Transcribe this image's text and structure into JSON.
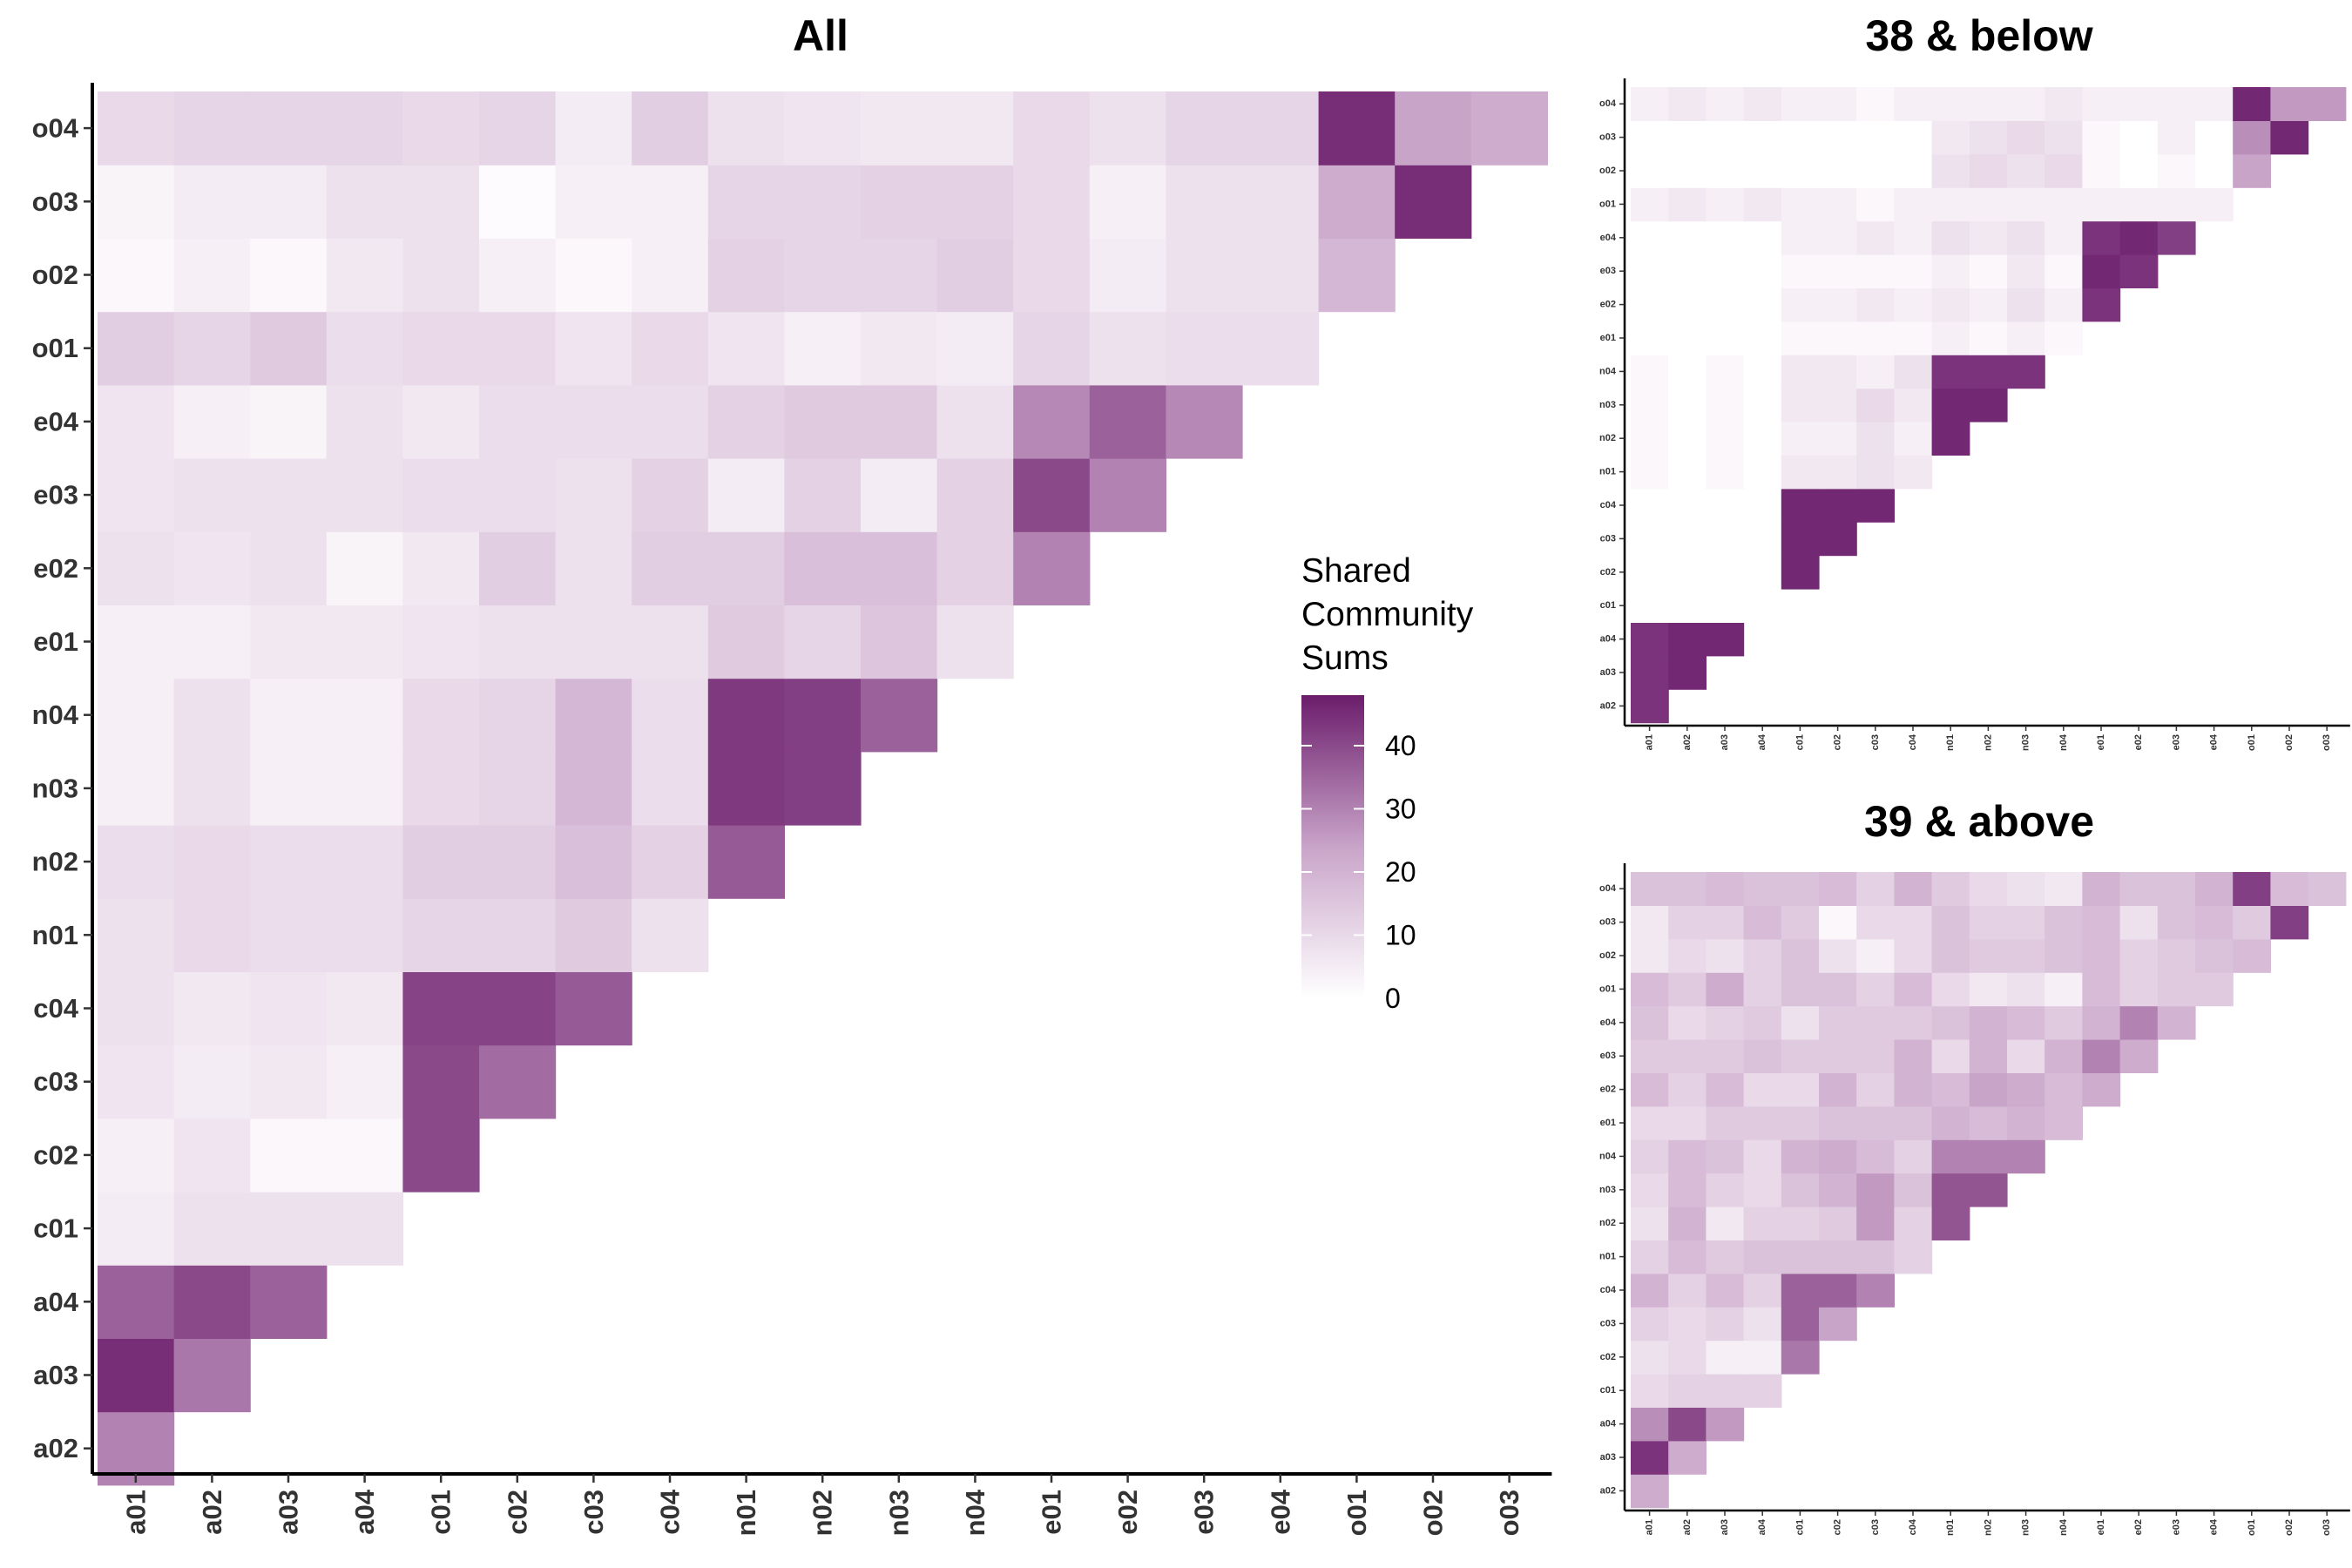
{
  "colors": {
    "low": "#ffffff",
    "mid": "#c9a4c9",
    "high": "#6b1d6b"
  },
  "legend": {
    "title_lines": [
      "Shared",
      "Community",
      "Sums"
    ],
    "ticks": [
      0,
      10,
      20,
      30,
      40
    ],
    "range": [
      0,
      48
    ]
  },
  "chart_data": [
    {
      "type": "heatmap",
      "title": "All",
      "xlabel": "",
      "ylabel": "",
      "x_categories": [
        "a01",
        "a02",
        "a03",
        "a04",
        "c01",
        "c02",
        "c03",
        "c04",
        "n01",
        "n02",
        "n03",
        "n04",
        "e01",
        "e02",
        "e03",
        "e04",
        "o01",
        "o02",
        "o03"
      ],
      "y_categories": [
        "a02",
        "a03",
        "a04",
        "c01",
        "c02",
        "c03",
        "c04",
        "n01",
        "n02",
        "n03",
        "n04",
        "e01",
        "e02",
        "e03",
        "e04",
        "o01",
        "o02",
        "o03",
        "o04"
      ],
      "values": [
        [
          30
        ],
        [
          45,
          32
        ],
        [
          36,
          40,
          36
        ],
        [
          5,
          8,
          8,
          8
        ],
        [
          4,
          7,
          2,
          2,
          40
        ],
        [
          7,
          5,
          6,
          4,
          40,
          34
        ],
        [
          8,
          6,
          7,
          6,
          41,
          41,
          37
        ],
        [
          8,
          10,
          9,
          9,
          11,
          11,
          14,
          8
        ],
        [
          9,
          10,
          9,
          9,
          13,
          13,
          17,
          12,
          37
        ],
        [
          4,
          8,
          4,
          4,
          10,
          11,
          19,
          9,
          43,
          42
        ],
        [
          4,
          8,
          4,
          4,
          10,
          11,
          19,
          9,
          43,
          42,
          36
        ],
        [
          4,
          4,
          6,
          6,
          7,
          8,
          8,
          8,
          14,
          11,
          15,
          8
        ],
        [
          8,
          7,
          8,
          3,
          6,
          13,
          8,
          13,
          13,
          17,
          17,
          12,
          30
        ],
        [
          7,
          8,
          8,
          8,
          9,
          9,
          8,
          12,
          5,
          12,
          5,
          12,
          40,
          30
        ],
        [
          7,
          4,
          3,
          8,
          6,
          9,
          9,
          9,
          12,
          14,
          14,
          8,
          29,
          36,
          29
        ],
        [
          13,
          11,
          14,
          9,
          10,
          10,
          7,
          10,
          7,
          4,
          6,
          5,
          11,
          8,
          9,
          9
        ],
        [
          2,
          4,
          2,
          6,
          8,
          4,
          2,
          4,
          12,
          11,
          11,
          13,
          10,
          5,
          8,
          8,
          19
        ],
        [
          3,
          5,
          5,
          8,
          8,
          1,
          4,
          4,
          11,
          11,
          12,
          12,
          10,
          4,
          8,
          8,
          22,
          45
        ],
        [
          10,
          11,
          11,
          11,
          10,
          11,
          5,
          13,
          8,
          7,
          6,
          6,
          10,
          8,
          11,
          11,
          45,
          24,
          22
        ]
      ]
    },
    {
      "type": "heatmap",
      "title": "38 & below",
      "xlabel": "",
      "ylabel": "",
      "x_categories": [
        "a01",
        "a02",
        "a03",
        "a04",
        "c01",
        "c02",
        "c03",
        "c04",
        "n01",
        "n02",
        "n03",
        "n04",
        "e01",
        "e02",
        "e03",
        "e04",
        "o01",
        "o02",
        "o03"
      ],
      "y_categories": [
        "a02",
        "a03",
        "a04",
        "c01",
        "c02",
        "c03",
        "c04",
        "n01",
        "n02",
        "n03",
        "n04",
        "e01",
        "e02",
        "e03",
        "e04",
        "o01",
        "o02",
        "o03",
        "o04"
      ],
      "values": [
        [
          44
        ],
        [
          44,
          46
        ],
        [
          44,
          46,
          46
        ],
        [
          0,
          0,
          0,
          0
        ],
        [
          0,
          0,
          0,
          0,
          46
        ],
        [
          0,
          0,
          0,
          0,
          46,
          46
        ],
        [
          0,
          0,
          0,
          0,
          46,
          46,
          46
        ],
        [
          2,
          0,
          2,
          0,
          6,
          6,
          8,
          6
        ],
        [
          2,
          0,
          2,
          0,
          4,
          4,
          8,
          4,
          46
        ],
        [
          2,
          0,
          2,
          0,
          6,
          6,
          10,
          6,
          46,
          46
        ],
        [
          2,
          0,
          2,
          0,
          6,
          6,
          4,
          8,
          44,
          44,
          44
        ],
        [
          0,
          0,
          0,
          0,
          2,
          2,
          2,
          2,
          4,
          2,
          4,
          2
        ],
        [
          0,
          0,
          0,
          0,
          4,
          4,
          6,
          4,
          6,
          4,
          8,
          4,
          44
        ],
        [
          0,
          0,
          0,
          0,
          2,
          2,
          2,
          2,
          4,
          2,
          6,
          2,
          46,
          44
        ],
        [
          0,
          0,
          0,
          0,
          4,
          4,
          6,
          4,
          8,
          6,
          8,
          4,
          44,
          46,
          42
        ],
        [
          4,
          6,
          4,
          6,
          4,
          4,
          2,
          4,
          4,
          4,
          4,
          4,
          4,
          4,
          4,
          4
        ],
        [
          0,
          0,
          0,
          0,
          0,
          0,
          0,
          0,
          8,
          10,
          8,
          10,
          2,
          0,
          2,
          0,
          24
        ],
        [
          0,
          0,
          0,
          0,
          0,
          0,
          0,
          0,
          6,
          8,
          10,
          8,
          2,
          0,
          4,
          0,
          28,
          46
        ],
        [
          4,
          6,
          4,
          6,
          4,
          4,
          2,
          4,
          4,
          4,
          4,
          6,
          4,
          4,
          4,
          4,
          46,
          26,
          26
        ]
      ]
    },
    {
      "type": "heatmap",
      "title": "39 & above",
      "xlabel": "",
      "ylabel": "",
      "x_categories": [
        "a01",
        "a02",
        "a03",
        "a04",
        "c01",
        "c02",
        "c03",
        "c04",
        "n01",
        "n02",
        "n03",
        "n04",
        "e01",
        "e02",
        "e03",
        "e04",
        "o01",
        "o02",
        "o03"
      ],
      "y_categories": [
        "a02",
        "a03",
        "a04",
        "c01",
        "c02",
        "c03",
        "c04",
        "n01",
        "n02",
        "n03",
        "n04",
        "e01",
        "e02",
        "e03",
        "e04",
        "o01",
        "o02",
        "o03",
        "o04"
      ],
      "values": [
        [
          22
        ],
        [
          44,
          22
        ],
        [
          28,
          40,
          26
        ],
        [
          10,
          12,
          12,
          12
        ],
        [
          8,
          10,
          4,
          4,
          32
        ],
        [
          12,
          10,
          12,
          8,
          36,
          24
        ],
        [
          20,
          12,
          18,
          12,
          36,
          36,
          30
        ],
        [
          12,
          18,
          14,
          16,
          16,
          16,
          16,
          12
        ],
        [
          8,
          20,
          6,
          12,
          12,
          14,
          26,
          12,
          38
        ],
        [
          10,
          18,
          12,
          10,
          16,
          20,
          26,
          16,
          38,
          38
        ],
        [
          12,
          18,
          16,
          10,
          20,
          22,
          18,
          12,
          30,
          30,
          30
        ],
        [
          10,
          10,
          14,
          14,
          14,
          16,
          16,
          16,
          20,
          18,
          20,
          18
        ],
        [
          18,
          12,
          18,
          10,
          10,
          20,
          12,
          20,
          18,
          24,
          22,
          18,
          22
        ],
        [
          14,
          14,
          14,
          16,
          14,
          14,
          14,
          20,
          10,
          20,
          10,
          20,
          30,
          22
        ],
        [
          16,
          10,
          12,
          14,
          8,
          14,
          14,
          14,
          16,
          20,
          18,
          14,
          20,
          30,
          20
        ],
        [
          18,
          14,
          22,
          12,
          16,
          16,
          12,
          18,
          10,
          6,
          8,
          4,
          18,
          12,
          14,
          14
        ],
        [
          6,
          10,
          8,
          12,
          16,
          8,
          4,
          10,
          16,
          14,
          14,
          16,
          18,
          12,
          14,
          16,
          18
        ],
        [
          6,
          12,
          12,
          18,
          14,
          2,
          10,
          10,
          16,
          12,
          12,
          16,
          18,
          8,
          16,
          18,
          14,
          42
        ],
        [
          16,
          16,
          18,
          16,
          16,
          18,
          12,
          20,
          14,
          10,
          8,
          6,
          20,
          16,
          16,
          20,
          42,
          18,
          16
        ]
      ]
    }
  ]
}
